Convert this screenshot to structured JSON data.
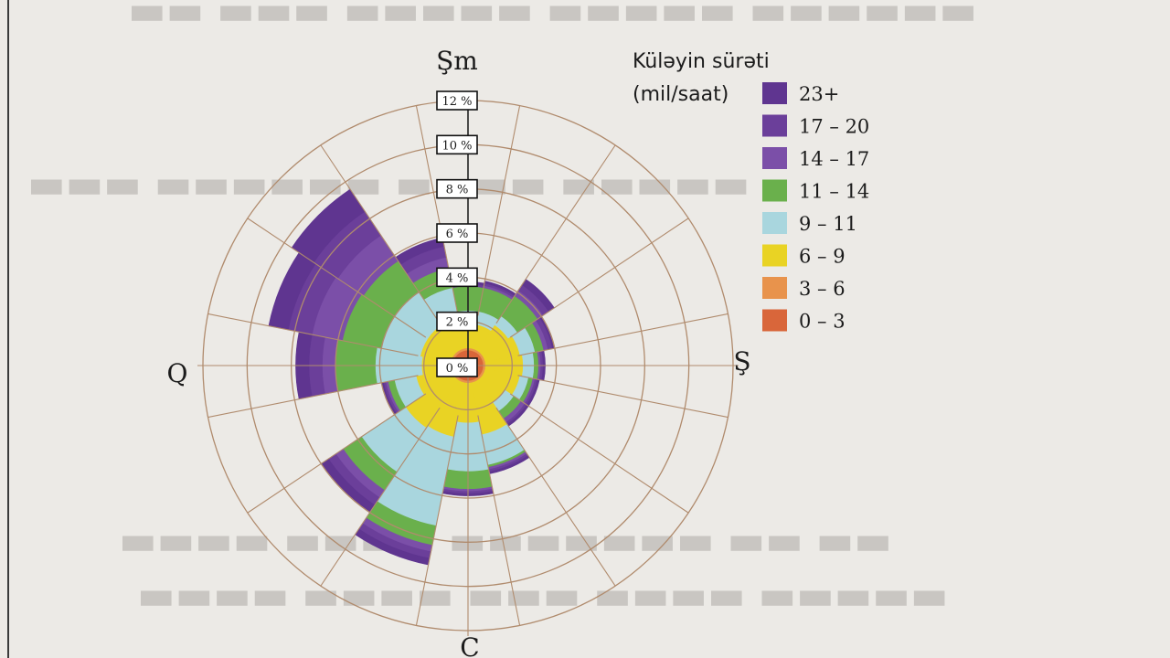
{
  "colors": {
    "ring": "#b08b6d",
    "spoke": "#b08b6d",
    "text": "#1b1b1b",
    "label_box_fill": "#ffffff",
    "label_box_stroke": "#111111"
  },
  "chart_data": {
    "type": "wind-rose",
    "direction_labels": {
      "north": "Şm",
      "east": "Ş",
      "south": "C",
      "west": "Q"
    },
    "legend_title": [
      "Küləyin sürəti",
      "(mil/saat)"
    ],
    "radial_max": 12,
    "radial_ticks": [
      "0 %",
      "2 %",
      "4 %",
      "6 %",
      "8 %",
      "10 %",
      "12 %"
    ],
    "speed_bins": [
      {
        "label": "0 – 3",
        "color": "#d9663a"
      },
      {
        "label": "3 – 6",
        "color": "#e8934c"
      },
      {
        "label": "6 – 9",
        "color": "#e9d324"
      },
      {
        "label": "9 – 11",
        "color": "#a9d6de"
      },
      {
        "label": "11 – 14",
        "color": "#6ab04c"
      },
      {
        "label": "14 – 17",
        "color": "#7b4fa8"
      },
      {
        "label": "17 – 20",
        "color": "#6b3f9a"
      },
      {
        "label": "23+",
        "color": "#5f3590"
      }
    ],
    "legend_order": [
      "23+",
      "17 – 20",
      "14 – 17",
      "11 – 14",
      "9 – 11",
      "6 – 9",
      "3 – 6",
      "0 – 3"
    ],
    "directions_deg": [
      0,
      22.5,
      45,
      67.5,
      90,
      112.5,
      135,
      157.5,
      180,
      202.5,
      225,
      247.5,
      270,
      292.5,
      315,
      337.5
    ],
    "cumulative_percent": [
      [
        0.7,
        0.8,
        1.9,
        2.5,
        3.6,
        3.6,
        3.7,
        3.8
      ],
      [
        0.7,
        0.8,
        1.9,
        2.5,
        3.6,
        3.7,
        3.8,
        3.9
      ],
      [
        0.7,
        0.8,
        2.2,
        2.7,
        3.8,
        4.1,
        4.4,
        4.7
      ],
      [
        0.7,
        0.8,
        2.4,
        3.1,
        3.5,
        3.7,
        3.9,
        4.0
      ],
      [
        0.7,
        0.8,
        2.5,
        3.0,
        3.2,
        3.3,
        3.4,
        3.5
      ],
      [
        0.7,
        0.8,
        2.4,
        2.8,
        3.0,
        3.1,
        3.2,
        3.3
      ],
      [
        0.7,
        0.8,
        2.0,
        2.5,
        2.9,
        3.1,
        3.2,
        3.3
      ],
      [
        0.7,
        0.8,
        3.2,
        4.6,
        4.7,
        4.8,
        4.9,
        5.0
      ],
      [
        0.7,
        0.8,
        2.6,
        4.8,
        5.6,
        5.7,
        5.8,
        5.9
      ],
      [
        0.7,
        0.8,
        3.3,
        7.4,
        8.3,
        8.6,
        8.9,
        9.2
      ],
      [
        0.7,
        0.8,
        3.4,
        5.8,
        6.8,
        7.2,
        7.6,
        8.0
      ],
      [
        0.7,
        0.8,
        2.4,
        3.4,
        3.7,
        3.8,
        3.9,
        4.0
      ],
      [
        0.7,
        0.8,
        2.1,
        4.2,
        6.0,
        6.6,
        7.2,
        7.8
      ],
      [
        0.7,
        0.8,
        2.2,
        4.0,
        5.8,
        7.2,
        8.3,
        9.2
      ],
      [
        0.7,
        0.8,
        2.2,
        4.0,
        5.7,
        7.1,
        8.4,
        9.6
      ],
      [
        0.7,
        0.8,
        2.1,
        3.6,
        4.5,
        5.0,
        5.5,
        5.9
      ]
    ]
  }
}
